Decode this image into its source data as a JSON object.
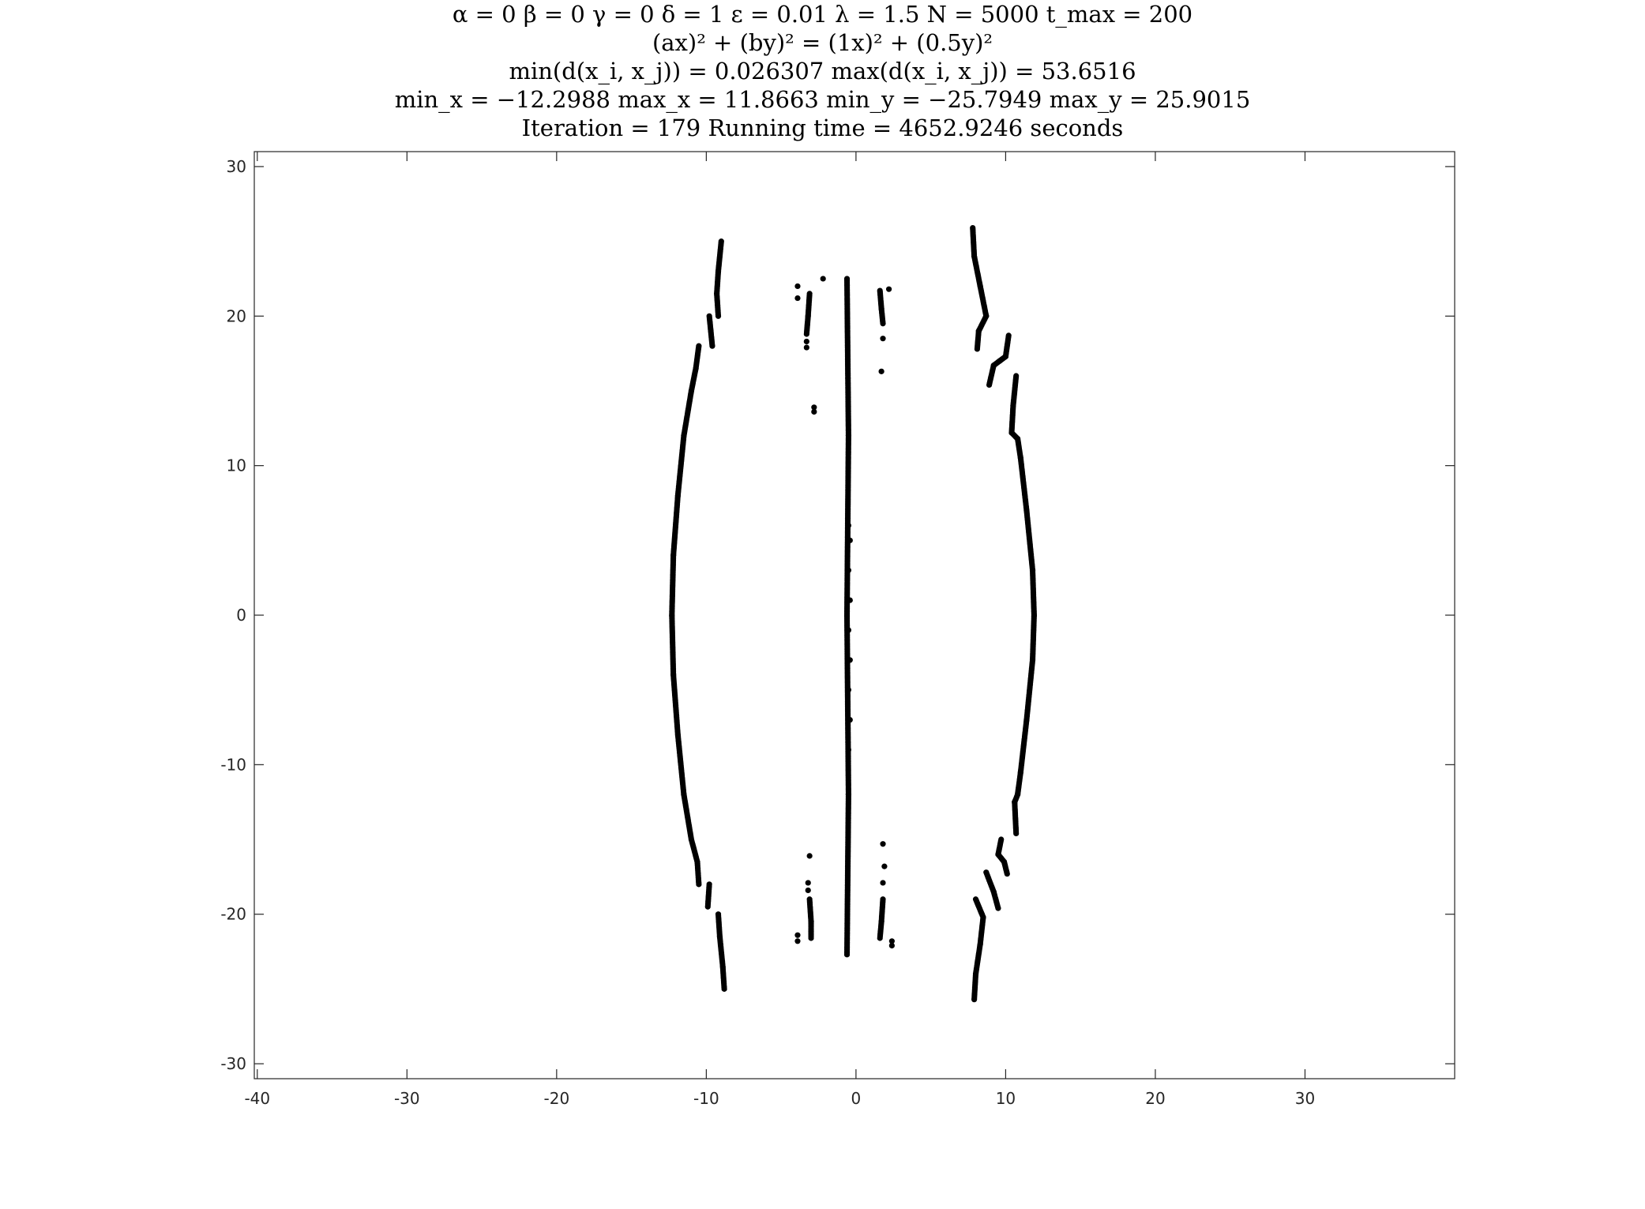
{
  "chart_data": {
    "type": "scatter",
    "title_lines": [
      "α = 0    β = 0    γ = 0    δ = 1    ε = 0.01    λ = 1.5    N = 5000    t_max = 200",
      "(ax)² + (by)² = (1x)² + (0.5y)²",
      "min(d(x_i, x_j)) = 0.026307    max(d(x_i, x_j)) = 53.6516",
      "min_x = −12.2988    max_x = 11.8663    min_y = −25.7949    max_y = 25.9015",
      "Iteration = 179    Running time = 4652.9246 seconds"
    ],
    "xlabel": "",
    "ylabel": "",
    "xlim": [
      -40.2,
      40
    ],
    "ylim": [
      -31,
      31
    ],
    "xticks": [
      -40,
      -30,
      -20,
      -10,
      0,
      10,
      20,
      30
    ],
    "xtick_labels": [
      "-40",
      "-30",
      "-20",
      "-10",
      "0",
      "10",
      "20",
      "30"
    ],
    "yticks": [
      -30,
      -20,
      -10,
      0,
      10,
      20,
      30
    ],
    "ytick_labels": [
      "-30",
      "-20",
      "-10",
      "0",
      "10",
      "20",
      "30"
    ],
    "grid": false,
    "marker_color": "#000000",
    "dense_segments": [
      {
        "name": "left-arc",
        "points": [
          [
            -9.0,
            25.0
          ],
          [
            -9.2,
            23.0
          ],
          [
            -9.3,
            21.5
          ],
          [
            -9.2,
            20.0
          ]
        ]
      },
      {
        "name": "left-arc-2",
        "points": [
          [
            -9.8,
            20.0
          ],
          [
            -9.6,
            18.0
          ]
        ]
      },
      {
        "name": "left-arc-3",
        "points": [
          [
            -10.5,
            18.0
          ],
          [
            -10.7,
            16.5
          ],
          [
            -11.0,
            15.0
          ],
          [
            -11.5,
            12.0
          ],
          [
            -11.9,
            8.0
          ],
          [
            -12.2,
            4.0
          ],
          [
            -12.3,
            0.0
          ],
          [
            -12.2,
            -4.0
          ],
          [
            -11.9,
            -8.0
          ],
          [
            -11.5,
            -12.0
          ],
          [
            -11.0,
            -15.0
          ],
          [
            -10.6,
            -16.5
          ],
          [
            -10.5,
            -18.0
          ]
        ]
      },
      {
        "name": "left-arc-4",
        "points": [
          [
            -9.8,
            -18.0
          ],
          [
            -9.9,
            -19.5
          ]
        ]
      },
      {
        "name": "left-arc-5",
        "points": [
          [
            -9.2,
            -20.0
          ],
          [
            -9.1,
            -21.5
          ],
          [
            -8.9,
            -23.5
          ],
          [
            -8.8,
            -25.0
          ]
        ]
      },
      {
        "name": "right-arc",
        "points": [
          [
            7.8,
            25.9
          ],
          [
            7.9,
            24.0
          ],
          [
            8.3,
            22.0
          ],
          [
            8.7,
            20.0
          ],
          [
            8.2,
            19.0
          ],
          [
            8.1,
            17.8
          ]
        ]
      },
      {
        "name": "right-arc-2",
        "points": [
          [
            8.9,
            15.4
          ],
          [
            9.2,
            16.7
          ],
          [
            9.6,
            17.0
          ],
          [
            10.0,
            17.3
          ],
          [
            10.2,
            18.7
          ]
        ]
      },
      {
        "name": "right-arc-3",
        "points": [
          [
            10.7,
            16.0
          ],
          [
            10.5,
            14.0
          ],
          [
            10.4,
            12.2
          ],
          [
            10.8,
            11.8
          ],
          [
            11.0,
            10.5
          ],
          [
            11.4,
            7.0
          ],
          [
            11.8,
            3.0
          ],
          [
            11.9,
            0.0
          ],
          [
            11.8,
            -3.0
          ],
          [
            11.4,
            -7.0
          ],
          [
            11.0,
            -10.5
          ],
          [
            10.8,
            -12.0
          ],
          [
            10.6,
            -12.5
          ],
          [
            10.7,
            -14.6
          ]
        ]
      },
      {
        "name": "right-arc-4",
        "points": [
          [
            10.1,
            -17.3
          ],
          [
            9.9,
            -16.5
          ],
          [
            9.5,
            -16.0
          ],
          [
            9.7,
            -15.0
          ]
        ]
      },
      {
        "name": "right-arc-5",
        "points": [
          [
            9.5,
            -19.6
          ],
          [
            9.2,
            -18.5
          ],
          [
            8.7,
            -17.2
          ]
        ]
      },
      {
        "name": "right-arc-6",
        "points": [
          [
            7.9,
            -25.7
          ],
          [
            8.0,
            -24.0
          ],
          [
            8.3,
            -22.0
          ],
          [
            8.5,
            -20.2
          ],
          [
            8.0,
            -19.0
          ]
        ]
      },
      {
        "name": "center-line",
        "points": [
          [
            -0.6,
            22.5
          ],
          [
            -0.5,
            12.0
          ],
          [
            -0.6,
            0.0
          ],
          [
            -0.5,
            -12.0
          ],
          [
            -0.6,
            -22.7
          ]
        ]
      },
      {
        "name": "inner-left-top",
        "points": [
          [
            -3.1,
            21.5
          ],
          [
            -3.2,
            20.0
          ],
          [
            -3.3,
            18.8
          ]
        ]
      },
      {
        "name": "inner-right-top",
        "points": [
          [
            1.6,
            21.7
          ],
          [
            1.7,
            20.5
          ],
          [
            1.8,
            19.5
          ]
        ]
      },
      {
        "name": "inner-left-bottom",
        "points": [
          [
            -3.1,
            -19.0
          ],
          [
            -3.0,
            -20.5
          ],
          [
            -3.0,
            -21.6
          ]
        ]
      },
      {
        "name": "inner-right-bottom",
        "points": [
          [
            1.8,
            -19.0
          ],
          [
            1.7,
            -20.5
          ],
          [
            1.6,
            -21.6
          ]
        ]
      }
    ],
    "sparse_points": [
      [
        -3.9,
        22.0
      ],
      [
        -3.9,
        21.2
      ],
      [
        -2.2,
        22.5
      ],
      [
        2.2,
        21.8
      ],
      [
        -3.3,
        18.3
      ],
      [
        -3.3,
        17.9
      ],
      [
        1.8,
        18.5
      ],
      [
        1.7,
        16.3
      ],
      [
        -2.8,
        13.9
      ],
      [
        -2.8,
        13.6
      ],
      [
        -3.1,
        -16.1
      ],
      [
        -3.2,
        -17.9
      ],
      [
        -3.2,
        -18.4
      ],
      [
        1.8,
        -15.3
      ],
      [
        1.9,
        -16.8
      ],
      [
        1.8,
        -17.9
      ],
      [
        -3.9,
        -21.4
      ],
      [
        -3.9,
        -21.8
      ],
      [
        2.4,
        -21.8
      ],
      [
        2.4,
        -22.1
      ],
      [
        -0.5,
        6.0
      ],
      [
        -0.4,
        5.0
      ],
      [
        -0.5,
        3.0
      ],
      [
        -0.4,
        1.0
      ],
      [
        -0.5,
        -1.0
      ],
      [
        -0.4,
        -3.0
      ],
      [
        -0.5,
        -5.0
      ],
      [
        -0.4,
        -7.0
      ],
      [
        -0.5,
        -9.0
      ]
    ]
  }
}
